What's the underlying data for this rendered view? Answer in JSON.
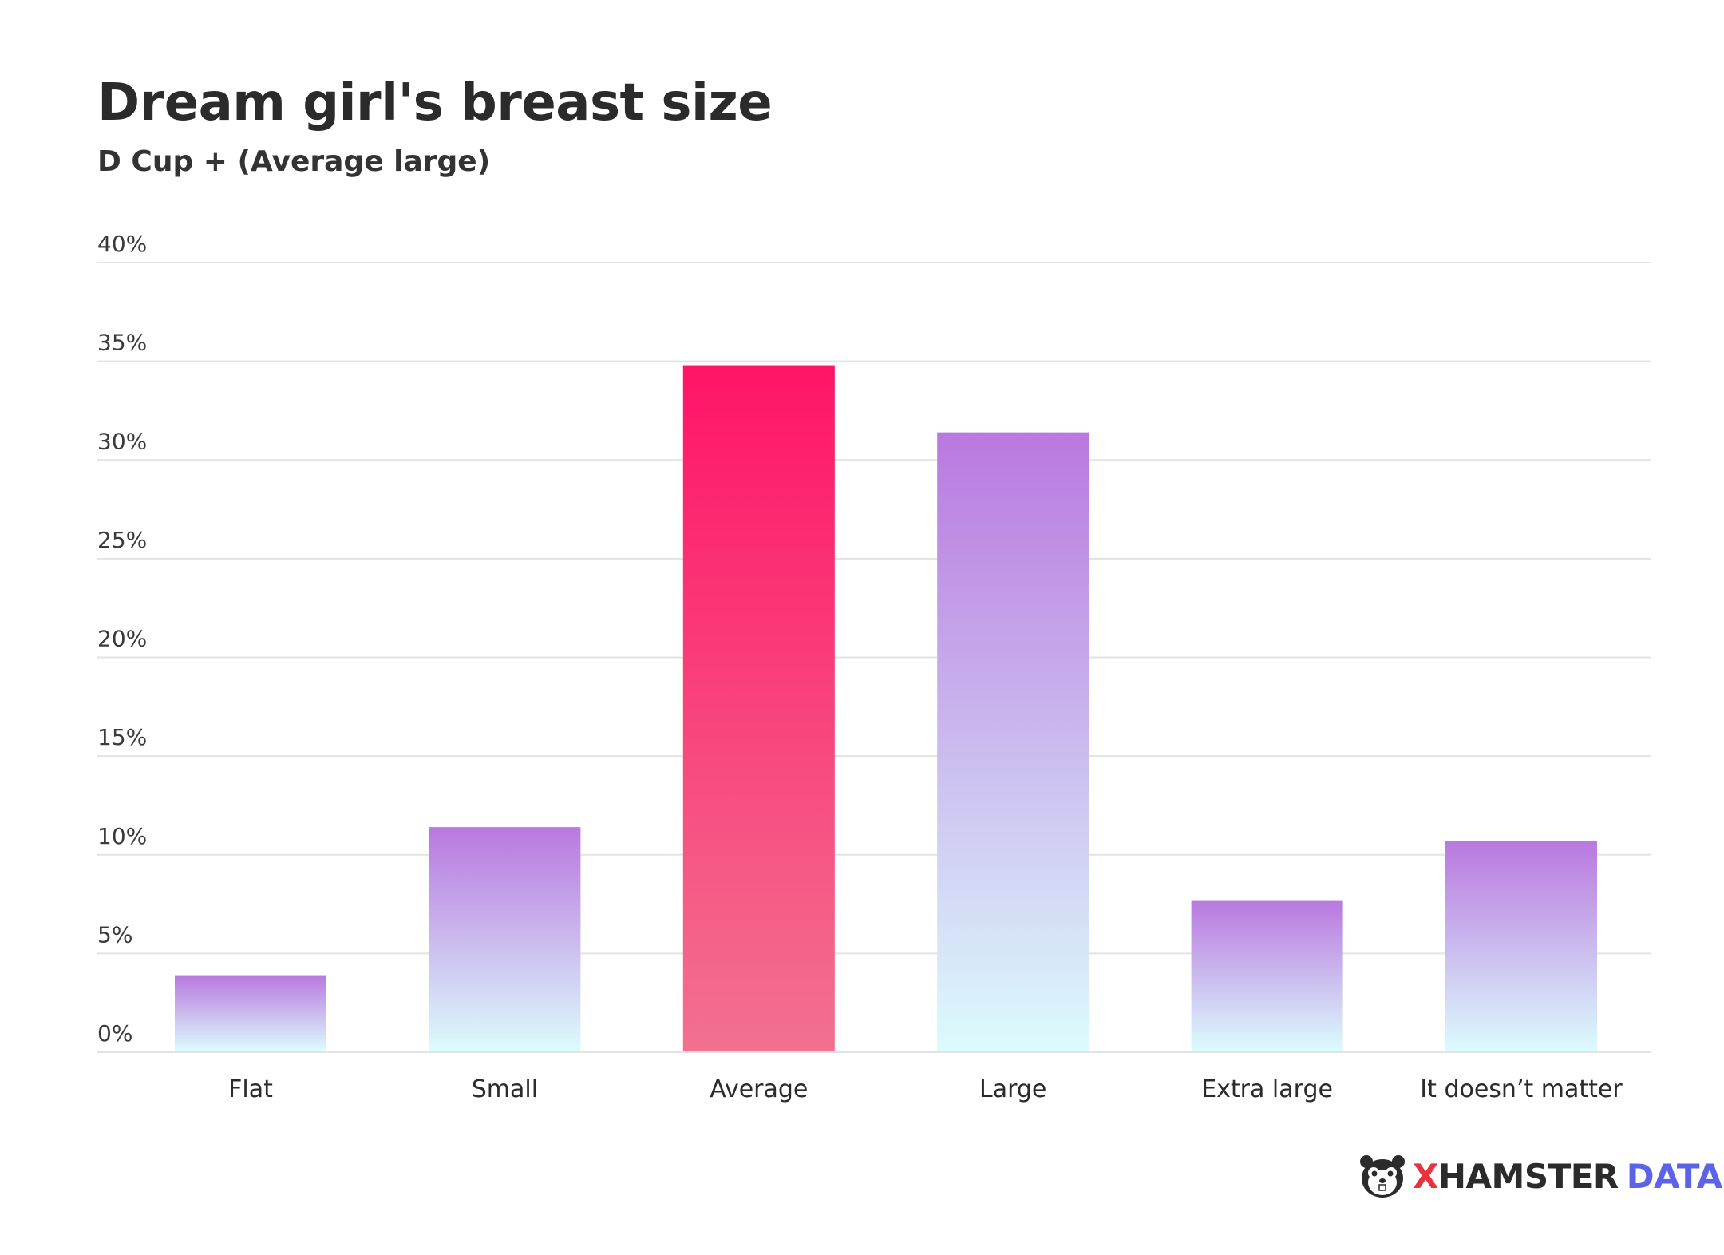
{
  "header": {
    "title": "Dream girl's breast size",
    "subtitle": "D Cup + (Average large)"
  },
  "brand": {
    "x": "X",
    "hamster": "HAMSTER",
    "data": "DATA",
    "icon": "hamster-face-icon"
  },
  "colors": {
    "highlight_top": "#ff1468",
    "highlight_bottom": "#f2718f",
    "normal_top": "#b978df",
    "normal_bottom": "#dcfbfd",
    "grid": "#e3e3e3"
  },
  "chart_data": {
    "type": "bar",
    "title": "Dream girl's breast size",
    "subtitle": "D Cup + (Average large)",
    "categories": [
      "Flat",
      "Small",
      "Average",
      "Large",
      "Extra large",
      "It doesn’t matter"
    ],
    "values": [
      3.9,
      11.4,
      34.8,
      31.4,
      7.7,
      10.7
    ],
    "highlight": "Average",
    "ylim": [
      0,
      40
    ],
    "yticks": [
      0,
      5,
      10,
      15,
      20,
      25,
      30,
      35,
      40
    ],
    "ytick_labels": [
      "0%",
      "5%",
      "10%",
      "15%",
      "20%",
      "25%",
      "30%",
      "35%",
      "40%"
    ],
    "grid": true,
    "legend": "none"
  }
}
